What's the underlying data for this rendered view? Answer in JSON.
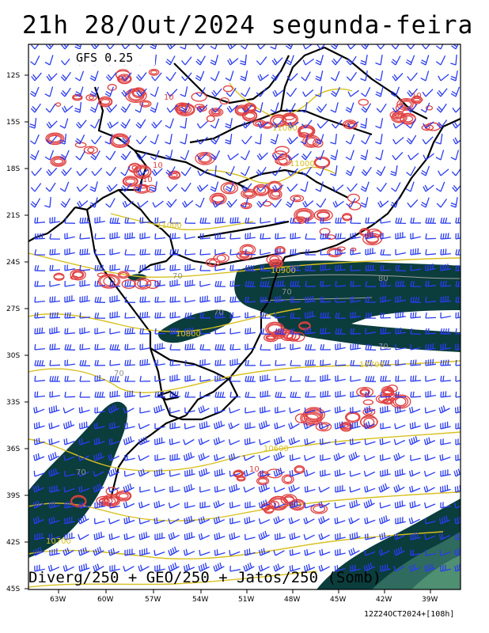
{
  "title": "21h 28/Out/2024 segunda-feira",
  "model_label": "GFS 0.25",
  "caption": "Diverg/250 + GEO/250 + Jatos/250 (Somb)",
  "footer": "12Z24OCT2024+[108h]",
  "y_axis_labels": [
    "12S",
    "15S",
    "18S",
    "21S",
    "24S",
    "27S",
    "30S",
    "33S",
    "36S",
    "39S",
    "42S",
    "45S"
  ],
  "x_axis_labels": [
    "63W",
    "60W",
    "57W",
    "54W",
    "51W",
    "48W",
    "45W",
    "42W",
    "39W"
  ],
  "contour_labels": [
    {
      "text": "10",
      "color": "#e04040"
    },
    {
      "text": "10",
      "color": "#e04040"
    },
    {
      "text": "10",
      "color": "#e04040"
    },
    {
      "text": "10",
      "color": "#e04040"
    },
    {
      "text": "10",
      "color": "#e04040"
    },
    {
      "text": "11000",
      "color": "#d8c020"
    },
    {
      "text": "11000",
      "color": "#d8c020"
    },
    {
      "text": "11000",
      "color": "#d8c020"
    },
    {
      "text": "10900",
      "color": "#d8c020"
    },
    {
      "text": "10800",
      "color": "#d8c020"
    },
    {
      "text": "10700",
      "color": "#d8c020"
    },
    {
      "text": "10600",
      "color": "#d8c020"
    },
    {
      "text": "10700",
      "color": "#d8c020"
    },
    {
      "text": "70",
      "color": "#909090"
    },
    {
      "text": "70",
      "color": "#909090"
    },
    {
      "text": "70",
      "color": "#909090"
    },
    {
      "text": "70",
      "color": "#909090"
    },
    {
      "text": "70",
      "color": "#909090"
    },
    {
      "text": "70",
      "color": "#909090"
    },
    {
      "text": "80",
      "color": "#909090"
    }
  ],
  "colors": {
    "divergence_contour": "#e04040",
    "geopotential_contour": "#d8c020",
    "wind_barb": "#2a3cf0",
    "jet_shading_dark": "#0b3d3d",
    "jet_shading_mid": "#2f6b5e",
    "jet_shading_light": "#4f8f72",
    "boundaries": "#000000"
  }
}
